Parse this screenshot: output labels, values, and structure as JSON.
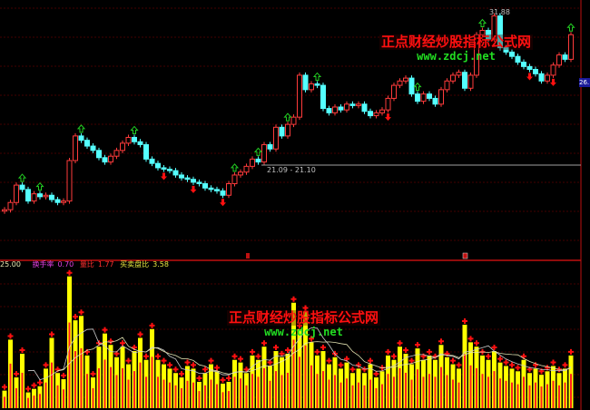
{
  "chart_data": [
    {
      "type": "candlestick",
      "title": "",
      "annotations": {
        "high_label": "31.88",
        "range_label": "21.09 - 21.10",
        "current_price_tag": "26."
      },
      "open": [
        18.0,
        18.1,
        18.6,
        19.8,
        19.5,
        18.7,
        19.2,
        19.0,
        19.1,
        18.8,
        18.6,
        18.7,
        21.5,
        23.2,
        22.9,
        22.5,
        22.2,
        21.7,
        21.4,
        21.8,
        22.2,
        22.7,
        23.1,
        22.8,
        22.6,
        21.6,
        21.3,
        21.0,
        20.9,
        20.8,
        20.5,
        20.3,
        20.2,
        20.0,
        19.9,
        19.6,
        19.5,
        19.4,
        19.1,
        19.9,
        20.5,
        20.7,
        21.1,
        21.6,
        21.4,
        22.6,
        22.3,
        23.8,
        23.2,
        24.0,
        24.5,
        27.4,
        26.4,
        26.8,
        26.7,
        25.1,
        24.8,
        25.2,
        25.0,
        25.4,
        25.3,
        25.4,
        24.9,
        24.6,
        24.8,
        25.0,
        25.8,
        26.7,
        27.0,
        27.2,
        26.1,
        25.6,
        26.1,
        25.8,
        25.4,
        26.4,
        27.0,
        27.4,
        27.6,
        26.5,
        27.4,
        30.2,
        30.5,
        29.9,
        31.5,
        29.3,
        29.0,
        28.7,
        28.3,
        28.0,
        27.8,
        27.5,
        27.0,
        27.4,
        28.1,
        28.8,
        28.5
      ],
      "close": [
        18.1,
        18.6,
        19.8,
        19.5,
        18.7,
        19.2,
        19.0,
        19.1,
        18.8,
        18.6,
        18.7,
        21.5,
        23.2,
        22.9,
        22.5,
        22.2,
        21.7,
        21.4,
        21.8,
        22.2,
        22.7,
        23.1,
        22.8,
        22.6,
        21.6,
        21.3,
        21.0,
        20.9,
        20.8,
        20.5,
        20.3,
        20.2,
        20.0,
        19.9,
        19.6,
        19.5,
        19.4,
        19.1,
        19.9,
        20.5,
        20.7,
        21.1,
        21.6,
        21.4,
        22.6,
        22.3,
        23.8,
        23.2,
        24.0,
        24.5,
        27.4,
        26.4,
        26.8,
        26.7,
        25.1,
        24.8,
        25.2,
        25.0,
        25.4,
        25.3,
        25.4,
        24.9,
        24.6,
        24.8,
        25.0,
        25.8,
        26.7,
        27.0,
        27.2,
        26.1,
        25.6,
        26.1,
        25.8,
        25.4,
        26.4,
        27.0,
        27.4,
        27.6,
        26.5,
        27.4,
        30.2,
        30.5,
        29.9,
        31.5,
        29.3,
        29.0,
        28.7,
        28.3,
        28.0,
        27.8,
        27.5,
        27.0,
        27.4,
        28.1,
        28.8,
        28.5,
        30.2
      ],
      "ylim": [
        14.6,
        32.6
      ],
      "grid": true,
      "signals_up_bars": [
        3,
        6,
        13,
        22,
        39,
        43,
        48,
        53,
        70,
        81,
        96
      ],
      "signals_down_bars": [
        27,
        32,
        37,
        65,
        89,
        93
      ],
      "colors": {
        "up": "#ff3b3b",
        "down": "#54ffff",
        "signal_up": "#22cc22",
        "signal_down": "#ff1010",
        "grid": "#5a0000"
      }
    },
    {
      "type": "bar",
      "title": "",
      "values": [
        20,
        78,
        35,
        62,
        18,
        22,
        25,
        45,
        80,
        40,
        33,
        150,
        100,
        105,
        60,
        35,
        70,
        85,
        72,
        58,
        70,
        50,
        65,
        80,
        55,
        90,
        55,
        50,
        45,
        40,
        35,
        48,
        45,
        30,
        40,
        50,
        42,
        28,
        30,
        55,
        52,
        40,
        60,
        55,
        70,
        48,
        65,
        58,
        62,
        120,
        90,
        110,
        75,
        60,
        65,
        50,
        58,
        45,
        52,
        40,
        45,
        40,
        50,
        35,
        42,
        60,
        55,
        70,
        62,
        50,
        68,
        55,
        60,
        55,
        72,
        58,
        50,
        45,
        95,
        75,
        70,
        60,
        55,
        65,
        52,
        48,
        45,
        42,
        55,
        40,
        45,
        38,
        42,
        48,
        40,
        45,
        60
      ],
      "ylim": [
        0,
        160
      ],
      "colors": {
        "bar": "#ffff00",
        "inner": "#ff2020",
        "marker": "#ff1010",
        "ma": "#c8c8c8"
      }
    }
  ],
  "indicator_header": {
    "value": "25.00",
    "turnover_label": "换手率",
    "turnover_value": "0.70",
    "volume_ratio_label": "量比",
    "volume_ratio_value": "1.77",
    "bid_ask_label": "买卖盘比",
    "bid_ask_value": "3.58"
  },
  "watermark": {
    "cn": "正点财经炒股指标公式网",
    "url": "www.zdcj.net"
  }
}
